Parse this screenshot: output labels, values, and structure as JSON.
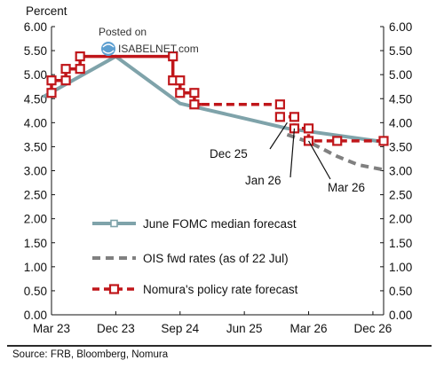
{
  "chart_data": {
    "type": "line",
    "ylabel": "Percent",
    "ylim": [
      0,
      6
    ],
    "y_ticks": [
      "0.00",
      "0.50",
      "1.00",
      "1.50",
      "2.00",
      "2.50",
      "3.00",
      "3.50",
      "4.00",
      "4.50",
      "5.00",
      "5.50",
      "6.00"
    ],
    "x_ticks": [
      "Mar 23",
      "Dec 23",
      "Sep 24",
      "Jun 25",
      "Mar 26",
      "Dec 26"
    ],
    "x_tick_months": [
      0,
      9,
      18,
      27,
      36,
      45
    ],
    "x_range_months": [
      0,
      46.5
    ],
    "series": [
      {
        "name": "June FOMC median forecast",
        "style": "solid",
        "color": "#7fa3aa",
        "points": [
          [
            -1,
            4.55
          ],
          [
            9,
            5.38
          ],
          [
            18,
            4.4
          ],
          [
            33,
            3.88
          ],
          [
            46.5,
            3.6
          ]
        ]
      },
      {
        "name": "OIS fwd rates (as of 22 Jul)",
        "style": "dashed",
        "color": "#808080",
        "points": [
          [
            33,
            3.75
          ],
          [
            36,
            3.6
          ],
          [
            40,
            3.3
          ],
          [
            43,
            3.12
          ],
          [
            46.5,
            3.02
          ]
        ]
      },
      {
        "name": "Nomura's policy rate forecast",
        "style": "dashed-markers",
        "color": "#c0161a",
        "points": [
          [
            0,
            4.62
          ],
          [
            0,
            4.88
          ],
          [
            1,
            4.88
          ],
          [
            2,
            4.88
          ],
          [
            2,
            5.12
          ],
          [
            3,
            5.12
          ],
          [
            4,
            5.12
          ],
          [
            4,
            5.38
          ],
          [
            17,
            5.38
          ],
          [
            17,
            4.88
          ],
          [
            18,
            4.88
          ],
          [
            18,
            4.62
          ],
          [
            19,
            4.62
          ],
          [
            20,
            4.62
          ],
          [
            20,
            4.38
          ],
          [
            21,
            4.38
          ],
          [
            31,
            4.38
          ],
          [
            32,
            4.38
          ],
          [
            32,
            4.12
          ],
          [
            33,
            4.12
          ],
          [
            34,
            4.12
          ],
          [
            34,
            3.88
          ],
          [
            35,
            3.88
          ],
          [
            36,
            3.88
          ],
          [
            36,
            3.62
          ],
          [
            37,
            3.62
          ],
          [
            40,
            3.62
          ],
          [
            46.5,
            3.62
          ]
        ],
        "markers": [
          [
            0,
            4.62
          ],
          [
            0,
            4.88
          ],
          [
            2,
            4.88
          ],
          [
            2,
            5.12
          ],
          [
            4,
            5.12
          ],
          [
            4,
            5.38
          ],
          [
            17,
            5.38
          ],
          [
            17,
            4.88
          ],
          [
            18,
            4.88
          ],
          [
            18,
            4.62
          ],
          [
            20,
            4.62
          ],
          [
            20,
            4.38
          ],
          [
            32,
            4.38
          ],
          [
            32,
            4.12
          ],
          [
            34,
            4.12
          ],
          [
            34,
            3.88
          ],
          [
            36,
            3.88
          ],
          [
            36,
            3.62
          ],
          [
            40,
            3.62
          ],
          [
            46.5,
            3.62
          ]
        ]
      }
    ],
    "annotations": [
      {
        "text": "Dec 25",
        "at": [
          33,
          4.0
        ]
      },
      {
        "text": "Jan 26",
        "at": [
          34,
          3.88
        ]
      },
      {
        "text": "Mar 26",
        "at": [
          36,
          3.62
        ]
      }
    ],
    "legend_placement": "lower-left",
    "grid": false
  },
  "watermark": {
    "line1": "Posted on",
    "line2": "ISABELNET.com"
  },
  "source": "Source: FRB, Bloomberg, Nomura"
}
